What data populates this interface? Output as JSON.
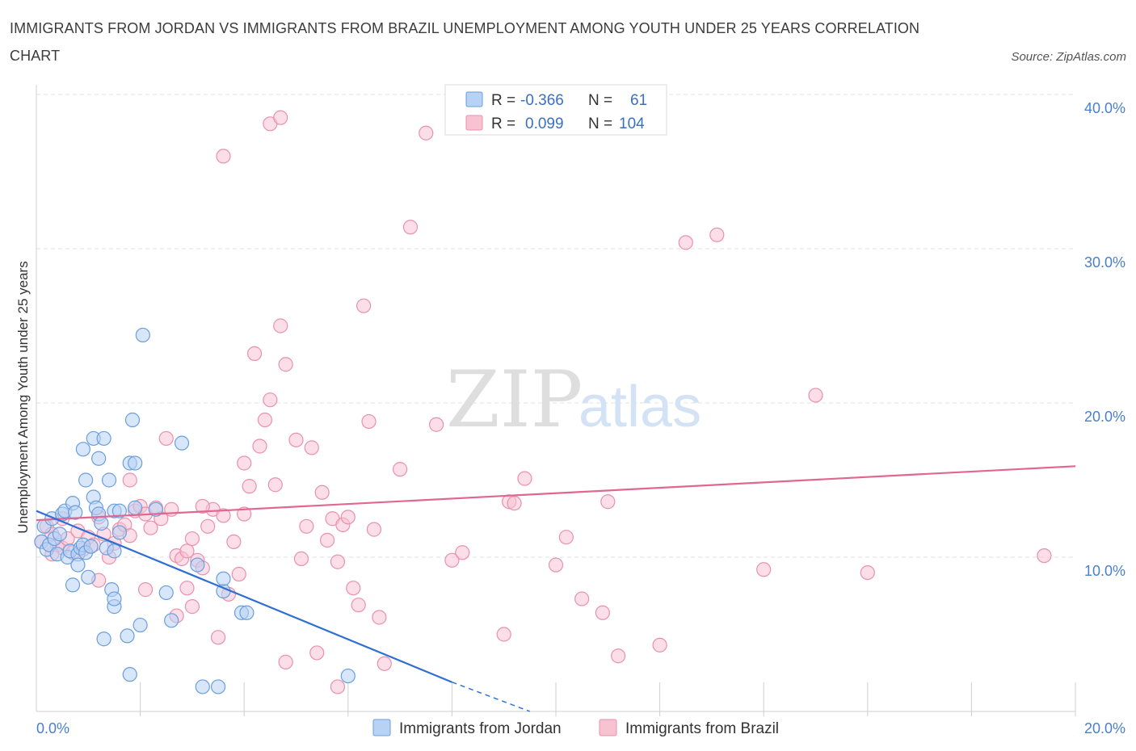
{
  "header": {
    "title": "IMMIGRANTS FROM JORDAN VS IMMIGRANTS FROM BRAZIL UNEMPLOYMENT AMONG YOUTH UNDER 25 YEARS CORRELATION CHART",
    "source": "Source: ZipAtlas.com"
  },
  "watermark": {
    "zip": "ZIP",
    "atlas": "atlas"
  },
  "legend": {
    "jordan": {
      "r_label": "R =",
      "r_value": "-0.366",
      "n_label": "N =",
      "n_value": "61"
    },
    "brazil": {
      "r_label": "R =",
      "r_value": "0.099",
      "n_label": "N =",
      "n_value": "104"
    }
  },
  "bottom_legend": {
    "jordan": "Immigrants from Jordan",
    "brazil": "Immigrants from Brazil"
  },
  "colors": {
    "jordan_fill": "#b8d2f4",
    "jordan_stroke": "#6a9ede",
    "jordan_line": "#2f6fd4",
    "brazil_fill": "#f7c3d3",
    "brazil_stroke": "#e991ad",
    "brazil_line": "#e0678f",
    "grid": "#e2e2e2",
    "tick_text": "#4a7fd0"
  },
  "chart_data": {
    "type": "scatter",
    "title": "IMMIGRANTS FROM JORDAN VS IMMIGRANTS FROM BRAZIL UNEMPLOYMENT AMONG YOUTH UNDER 25 YEARS CORRELATION CHART",
    "xlabel": "",
    "ylabel": "Unemployment Among Youth under 25 years",
    "xlim": [
      0,
      20
    ],
    "ylim": [
      0,
      40
    ],
    "x_tick_labels": [
      {
        "value": 0,
        "label": "0.0%"
      },
      {
        "value": 20,
        "label": "20.0%"
      }
    ],
    "y_tick_labels": [
      {
        "value": 10,
        "label": "10.0%"
      },
      {
        "value": 20,
        "label": "20.0%"
      },
      {
        "value": 30,
        "label": "30.0%"
      },
      {
        "value": 40,
        "label": "40.0%"
      }
    ],
    "x_ticks": [
      0,
      2,
      4,
      6,
      8,
      10,
      12,
      14,
      16,
      18,
      20
    ],
    "y_grid": [
      10,
      20,
      30,
      40
    ],
    "series": [
      {
        "name": "Immigrants from Jordan",
        "r": -0.366,
        "n": 61,
        "trend": {
          "x0": 0,
          "y0": 13.0,
          "x1": 8.0,
          "y1": 1.9,
          "dashed_to_x": 9.5,
          "dashed_to_y": 0
        },
        "points": [
          [
            0.1,
            11.0
          ],
          [
            0.15,
            12.0
          ],
          [
            0.2,
            10.5
          ],
          [
            0.25,
            10.8
          ],
          [
            0.3,
            12.5
          ],
          [
            0.35,
            11.2
          ],
          [
            0.4,
            10.2
          ],
          [
            0.45,
            11.5
          ],
          [
            0.5,
            12.8
          ],
          [
            0.55,
            13.0
          ],
          [
            0.6,
            10.0
          ],
          [
            0.65,
            10.4
          ],
          [
            0.7,
            13.5
          ],
          [
            0.75,
            12.9
          ],
          [
            0.8,
            10.2
          ],
          [
            0.85,
            10.6
          ],
          [
            0.9,
            10.8
          ],
          [
            0.95,
            10.3
          ],
          [
            1.0,
            8.7
          ],
          [
            1.05,
            10.7
          ],
          [
            0.9,
            17.0
          ],
          [
            1.1,
            17.7
          ],
          [
            1.2,
            16.4
          ],
          [
            1.3,
            17.7
          ],
          [
            0.95,
            15.0
          ],
          [
            1.1,
            13.9
          ],
          [
            1.15,
            13.2
          ],
          [
            1.2,
            12.8
          ],
          [
            1.25,
            12.2
          ],
          [
            1.4,
            15.0
          ],
          [
            1.35,
            10.6
          ],
          [
            1.5,
            10.4
          ],
          [
            1.6,
            11.6
          ],
          [
            1.45,
            7.9
          ],
          [
            1.5,
            6.8
          ],
          [
            1.5,
            13.0
          ],
          [
            1.6,
            13.0
          ],
          [
            1.8,
            16.1
          ],
          [
            1.9,
            16.1
          ],
          [
            1.85,
            18.9
          ],
          [
            2.05,
            24.4
          ],
          [
            1.9,
            13.2
          ],
          [
            2.3,
            13.1
          ],
          [
            2.5,
            7.7
          ],
          [
            2.6,
            5.9
          ],
          [
            2.8,
            17.4
          ],
          [
            3.1,
            9.5
          ],
          [
            3.6,
            7.8
          ],
          [
            3.6,
            8.6
          ],
          [
            3.95,
            6.4
          ],
          [
            4.05,
            6.4
          ],
          [
            3.2,
            1.6
          ],
          [
            3.5,
            1.6
          ],
          [
            6.0,
            2.3
          ],
          [
            1.3,
            4.7
          ],
          [
            1.75,
            4.9
          ],
          [
            1.8,
            2.4
          ],
          [
            2.0,
            5.6
          ],
          [
            1.5,
            7.3
          ],
          [
            0.7,
            8.2
          ],
          [
            0.8,
            9.5
          ]
        ]
      },
      {
        "name": "Immigrants from Brazil",
        "r": 0.099,
        "n": 104,
        "trend": {
          "x0": 0,
          "y0": 12.4,
          "x1": 20,
          "y1": 15.9
        },
        "points": [
          [
            0.1,
            11.0
          ],
          [
            0.2,
            12.0
          ],
          [
            0.3,
            11.5
          ],
          [
            0.4,
            10.8
          ],
          [
            0.5,
            10.6
          ],
          [
            0.6,
            11.2
          ],
          [
            0.7,
            10.3
          ],
          [
            0.8,
            11.7
          ],
          [
            0.9,
            10.5
          ],
          [
            1.0,
            11.3
          ],
          [
            1.1,
            10.8
          ],
          [
            1.2,
            12.6
          ],
          [
            1.3,
            11.5
          ],
          [
            1.4,
            10.0
          ],
          [
            1.5,
            10.9
          ],
          [
            1.6,
            11.8
          ],
          [
            1.7,
            12.1
          ],
          [
            1.8,
            11.4
          ],
          [
            1.9,
            13.0
          ],
          [
            2.0,
            13.3
          ],
          [
            2.1,
            12.8
          ],
          [
            2.2,
            11.9
          ],
          [
            2.3,
            13.2
          ],
          [
            2.4,
            12.5
          ],
          [
            2.5,
            17.7
          ],
          [
            2.6,
            13.1
          ],
          [
            2.7,
            10.1
          ],
          [
            2.8,
            9.9
          ],
          [
            2.9,
            10.4
          ],
          [
            3.0,
            6.8
          ],
          [
            3.1,
            9.8
          ],
          [
            3.2,
            9.3
          ],
          [
            3.3,
            12.0
          ],
          [
            3.4,
            13.1
          ],
          [
            3.5,
            4.8
          ],
          [
            3.6,
            12.7
          ],
          [
            3.7,
            7.6
          ],
          [
            3.8,
            11.0
          ],
          [
            3.9,
            8.9
          ],
          [
            4.0,
            12.8
          ],
          [
            4.0,
            16.1
          ],
          [
            4.1,
            14.6
          ],
          [
            4.2,
            23.2
          ],
          [
            4.3,
            17.2
          ],
          [
            4.4,
            18.9
          ],
          [
            4.5,
            20.2
          ],
          [
            4.6,
            14.7
          ],
          [
            4.7,
            25.0
          ],
          [
            4.8,
            22.5
          ],
          [
            5.0,
            17.6
          ],
          [
            5.1,
            9.9
          ],
          [
            5.2,
            12.0
          ],
          [
            5.3,
            17.1
          ],
          [
            5.4,
            3.8
          ],
          [
            5.5,
            14.2
          ],
          [
            5.6,
            11.1
          ],
          [
            5.7,
            12.5
          ],
          [
            5.8,
            9.7
          ],
          [
            5.9,
            12.1
          ],
          [
            6.0,
            12.6
          ],
          [
            6.1,
            8.0
          ],
          [
            6.2,
            6.9
          ],
          [
            6.3,
            26.3
          ],
          [
            6.4,
            18.8
          ],
          [
            6.5,
            11.8
          ],
          [
            6.6,
            6.1
          ],
          [
            6.7,
            3.1
          ],
          [
            7.0,
            15.7
          ],
          [
            7.2,
            31.4
          ],
          [
            7.5,
            37.5
          ],
          [
            7.7,
            18.6
          ],
          [
            8.0,
            9.8
          ],
          [
            8.2,
            10.3
          ],
          [
            9.0,
            5.0
          ],
          [
            9.1,
            13.6
          ],
          [
            9.2,
            13.5
          ],
          [
            9.4,
            15.1
          ],
          [
            10.0,
            9.5
          ],
          [
            10.2,
            11.3
          ],
          [
            10.5,
            7.3
          ],
          [
            10.9,
            6.4
          ],
          [
            11.0,
            13.6
          ],
          [
            11.2,
            3.6
          ],
          [
            12.0,
            4.3
          ],
          [
            12.5,
            30.4
          ],
          [
            13.1,
            30.9
          ],
          [
            14.0,
            9.2
          ],
          [
            15.0,
            20.5
          ],
          [
            16.0,
            9.0
          ],
          [
            19.4,
            10.1
          ],
          [
            3.6,
            36.0
          ],
          [
            4.5,
            38.1
          ],
          [
            4.7,
            38.5
          ],
          [
            2.1,
            7.9
          ],
          [
            2.7,
            6.2
          ],
          [
            3.0,
            11.2
          ],
          [
            5.8,
            1.6
          ],
          [
            1.2,
            8.5
          ],
          [
            0.5,
            12.5
          ],
          [
            0.3,
            10.2
          ],
          [
            2.9,
            8.0
          ],
          [
            4.8,
            3.2
          ],
          [
            3.2,
            13.3
          ],
          [
            1.8,
            15.0
          ]
        ]
      }
    ]
  }
}
